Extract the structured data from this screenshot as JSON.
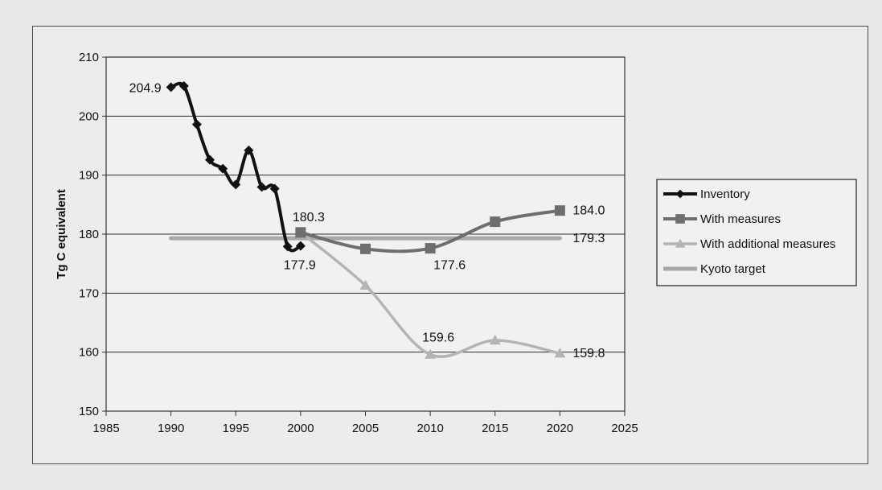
{
  "chart_data": {
    "type": "line",
    "title": "",
    "xlabel": "",
    "ylabel": "Tg C equivalent",
    "xlim": [
      1985,
      2025
    ],
    "ylim": [
      150,
      210
    ],
    "xticks": [
      1985,
      1990,
      1995,
      2000,
      2005,
      2010,
      2015,
      2020,
      2025
    ],
    "yticks": [
      150,
      160,
      170,
      180,
      190,
      200,
      210
    ],
    "grid": "horizontal",
    "legend_position": "right",
    "series": [
      {
        "name": "Inventory",
        "color": "#111111",
        "marker": "diamond",
        "x": [
          1990,
          1991,
          1992,
          1993,
          1994,
          1995,
          1996,
          1997,
          1998,
          1999,
          2000
        ],
        "y": [
          204.9,
          205.1,
          198.6,
          192.6,
          191.1,
          188.4,
          194.2,
          188.0,
          187.7,
          177.9,
          178.0
        ]
      },
      {
        "name": "With measures",
        "color": "#6e6e6e",
        "marker": "square",
        "x": [
          2000,
          2005,
          2010,
          2015,
          2020
        ],
        "y": [
          180.3,
          177.5,
          177.6,
          182.1,
          184.0
        ]
      },
      {
        "name": "With additional measures",
        "color": "#b4b4b4",
        "marker": "triangle",
        "x": [
          2000,
          2005,
          2010,
          2015,
          2020
        ],
        "y": [
          180.3,
          171.3,
          159.6,
          162.0,
          159.8
        ]
      },
      {
        "name": "Kyoto target",
        "color": "#a8a8a8",
        "marker": "none",
        "x": [
          1990,
          2020
        ],
        "y": [
          179.3,
          179.3
        ]
      }
    ],
    "annotations": [
      {
        "text": "204.9",
        "x": 1990,
        "y": 204.9,
        "pos": "left"
      },
      {
        "text": "180.3",
        "x": 2000,
        "y": 180.3,
        "pos": "above"
      },
      {
        "text": "177.9",
        "x": 1999,
        "y": 177.9,
        "pos": "below"
      },
      {
        "text": "177.6",
        "x": 2010,
        "y": 177.6,
        "pos": "below-right"
      },
      {
        "text": "184.0",
        "x": 2020,
        "y": 184.0,
        "pos": "right"
      },
      {
        "text": "179.3",
        "x": 2020,
        "y": 179.3,
        "pos": "right"
      },
      {
        "text": "159.6",
        "x": 2010,
        "y": 159.6,
        "pos": "above"
      },
      {
        "text": "159.8",
        "x": 2020,
        "y": 159.8,
        "pos": "right"
      }
    ]
  }
}
